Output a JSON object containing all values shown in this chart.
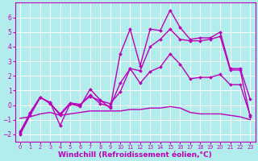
{
  "bg_color": "#b2ecec",
  "line_color": "#bb00bb",
  "grid_color": "#ffffff",
  "xlabel": "Windchill (Refroidissement éolien,°C)",
  "xlabel_fontsize": 6.5,
  "xtick_fontsize": 4.8,
  "ytick_fontsize": 5.5,
  "xlim": [
    -0.5,
    23.5
  ],
  "ylim": [
    -2.5,
    7.0
  ],
  "yticks": [
    -2,
    -1,
    0,
    1,
    2,
    3,
    4,
    5,
    6
  ],
  "xticks": [
    0,
    1,
    2,
    3,
    4,
    5,
    6,
    7,
    8,
    9,
    10,
    11,
    12,
    13,
    14,
    15,
    16,
    17,
    18,
    19,
    20,
    21,
    22,
    23
  ],
  "series": [
    {
      "x": [
        0,
        1,
        2,
        3,
        4,
        5,
        6,
        7,
        8,
        9,
        10,
        11,
        12,
        13,
        14,
        15,
        16,
        17,
        18,
        19,
        20,
        21,
        22,
        23
      ],
      "y": [
        -2.0,
        -0.7,
        0.5,
        0.2,
        -1.4,
        0.1,
        -0.1,
        1.1,
        0.35,
        -0.2,
        3.5,
        5.2,
        2.7,
        5.2,
        5.1,
        6.5,
        5.3,
        4.5,
        4.6,
        4.6,
        5.0,
        2.5,
        2.5,
        0.4
      ],
      "marker": "D",
      "markersize": 2.0,
      "linewidth": 1.0
    },
    {
      "x": [
        0,
        1,
        2,
        3,
        4,
        5,
        6,
        7,
        8,
        9,
        10,
        11,
        12,
        13,
        14,
        15,
        16,
        17,
        18,
        19,
        20,
        21,
        22,
        23
      ],
      "y": [
        -1.9,
        -0.5,
        0.55,
        0.1,
        -0.6,
        0.15,
        0.05,
        0.6,
        0.3,
        0.1,
        0.9,
        2.5,
        2.35,
        4.0,
        4.5,
        5.2,
        4.5,
        4.4,
        4.4,
        4.5,
        4.7,
        2.4,
        2.4,
        -0.8
      ],
      "marker": "D",
      "markersize": 2.0,
      "linewidth": 1.0
    },
    {
      "x": [
        0,
        1,
        2,
        3,
        4,
        5,
        6,
        7,
        8,
        9,
        10,
        11,
        12,
        13,
        14,
        15,
        16,
        17,
        18,
        19,
        20,
        21,
        22,
        23
      ],
      "y": [
        -1.8,
        -0.6,
        0.55,
        0.15,
        -0.7,
        0.1,
        0.0,
        0.7,
        0.1,
        -0.1,
        1.5,
        2.5,
        1.5,
        2.3,
        2.6,
        3.5,
        2.8,
        1.8,
        1.9,
        1.9,
        2.1,
        1.4,
        1.4,
        -0.7
      ],
      "marker": "D",
      "markersize": 2.0,
      "linewidth": 1.0
    },
    {
      "x": [
        0,
        1,
        2,
        3,
        4,
        5,
        6,
        7,
        8,
        9,
        10,
        11,
        12,
        13,
        14,
        15,
        16,
        17,
        18,
        19,
        20,
        21,
        22,
        23
      ],
      "y": [
        -0.9,
        -0.8,
        -0.6,
        -0.5,
        -0.7,
        -0.6,
        -0.5,
        -0.4,
        -0.4,
        -0.4,
        -0.4,
        -0.3,
        -0.3,
        -0.2,
        -0.2,
        -0.1,
        -0.2,
        -0.5,
        -0.6,
        -0.6,
        -0.6,
        -0.7,
        -0.8,
        -1.0
      ],
      "marker": null,
      "markersize": 0,
      "linewidth": 1.0
    }
  ]
}
